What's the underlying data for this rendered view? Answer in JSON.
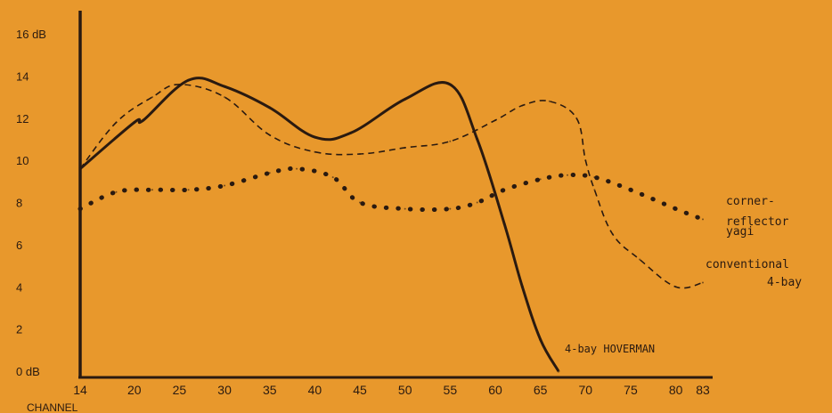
{
  "chart_data": {
    "type": "line",
    "title": "",
    "xlabel": "CHANNEL",
    "ylabel": "",
    "xlim": [
      14,
      83
    ],
    "ylim": [
      0,
      16
    ],
    "grid": false,
    "x_ticks": [
      14,
      20,
      25,
      30,
      35,
      40,
      45,
      50,
      55,
      60,
      65,
      70,
      75,
      80,
      83
    ],
    "x_tick_labels": [
      "14",
      "20",
      "25",
      "30",
      "35",
      "40",
      "45",
      "50",
      "55",
      "60",
      "65",
      "70",
      "75",
      "80",
      "83"
    ],
    "y_ticks": [
      0,
      2,
      4,
      6,
      8,
      10,
      12,
      14,
      16
    ],
    "y_tick_labels": [
      "0 dB",
      "2",
      "4",
      "6",
      "8",
      "10",
      "12",
      "14",
      "16 dB"
    ],
    "series": [
      {
        "name": "4-bay HOVERMAN",
        "style": "solid",
        "x": [
          14,
          20,
          21,
          26,
          30,
          35,
          40,
          44,
          50,
          55,
          58,
          61,
          63,
          65,
          67
        ],
        "y": [
          9.6,
          11.8,
          11.9,
          13.8,
          13.5,
          12.5,
          11.1,
          11.3,
          12.9,
          13.6,
          11,
          7,
          4,
          1.5,
          0
        ]
      },
      {
        "name": "conventional 4-bay",
        "style": "dashed",
        "x": [
          14,
          18,
          22,
          25,
          30,
          35,
          40,
          45,
          50,
          55,
          60,
          63,
          66,
          69,
          70,
          71,
          73,
          76,
          80,
          83
        ],
        "y": [
          9.6,
          11.8,
          13.0,
          13.6,
          13.0,
          11.2,
          10.4,
          10.3,
          10.6,
          10.9,
          11.9,
          12.6,
          12.8,
          12.0,
          10.0,
          8.6,
          6.5,
          5.3,
          4.0,
          4.2
        ]
      },
      {
        "name": "corner-reflector yagi",
        "style": "dotted",
        "x": [
          14,
          18,
          22,
          26,
          30,
          35,
          38,
          42,
          45,
          50,
          55,
          58,
          61,
          65,
          68,
          71,
          75,
          80,
          83
        ],
        "y": [
          7.7,
          8.5,
          8.6,
          8.6,
          8.8,
          9.4,
          9.6,
          9.2,
          8.0,
          7.7,
          7.7,
          8.0,
          8.6,
          9.1,
          9.3,
          9.2,
          8.6,
          7.7,
          7.2
        ]
      }
    ],
    "annotations": [
      {
        "label_line1": "corner-",
        "label_line2": "reflector",
        "label_line3": "yagi",
        "series": "corner-reflector yagi"
      },
      {
        "label_line1": "conventional",
        "label_line2": "4-bay",
        "series": "conventional 4-bay"
      },
      {
        "label_line1": "4-bay HOVERMAN",
        "series": "4-bay HOVERMAN"
      }
    ],
    "colors": {
      "background": "#e8982c",
      "ink": "#2a1a10"
    }
  }
}
